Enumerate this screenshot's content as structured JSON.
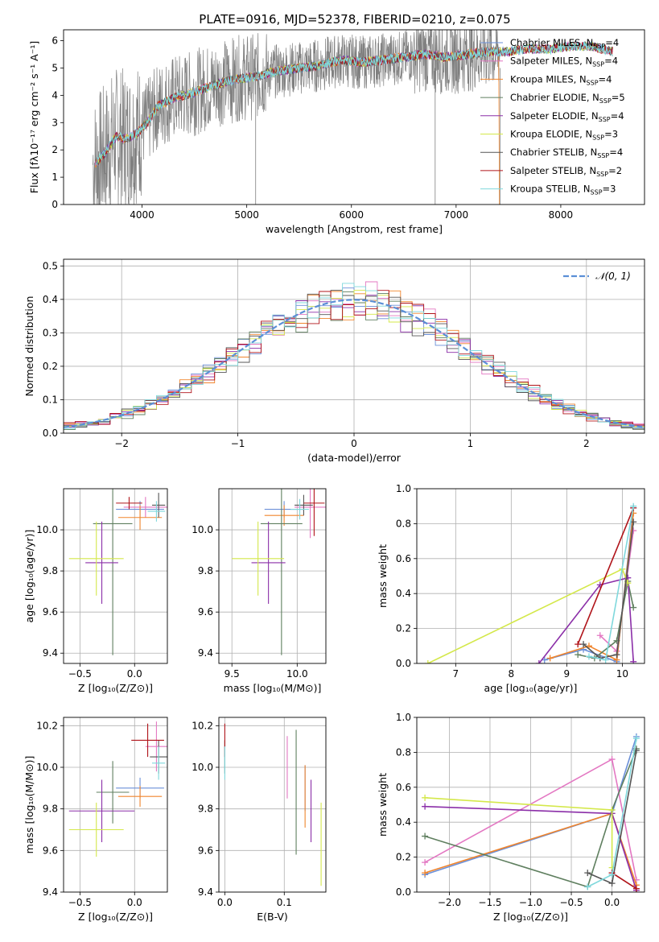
{
  "title": "PLATE=0916, MJD=52378, FIBERID=0210, z=0.075",
  "colors": {
    "Chabrier MILES": "#6a8fd8",
    "Salpeter MILES": "#e377c2",
    "Kroupa MILES": "#f0852d",
    "Chabrier ELODIE": "#5f7f5f",
    "Salpeter ELODIE": "#8b2fa8",
    "Kroupa ELODIE": "#d4e84a",
    "Chabrier STELIB": "#555555",
    "Salpeter STELIB": "#b0141a",
    "Kroupa STELIB": "#7fd8dc",
    "data": "#808080"
  },
  "chart_data": [
    {
      "id": "spectrum",
      "type": "line",
      "xlabel": "wavelength [Angstrom, rest frame]",
      "ylabel": "Flux [fλ10⁻¹⁷ erg cm⁻² s⁻¹ A⁻¹]",
      "xlim": [
        3250,
        8800
      ],
      "ylim": [
        0,
        6.4
      ],
      "xticks": [
        4000,
        5000,
        6000,
        7000,
        8000
      ],
      "yticks": [
        0,
        1,
        2,
        3,
        4,
        5,
        6
      ],
      "grid": false,
      "legend_position": "right",
      "continuum": {
        "x": [
          3550,
          3650,
          3750,
          3850,
          3950,
          4050,
          4150,
          4300,
          4500,
          4700,
          4900,
          5100,
          5300,
          5500,
          5700,
          5900,
          6100,
          6300,
          6500,
          6700,
          6900,
          7100,
          7300,
          7500,
          7700,
          7900,
          8100,
          8300,
          8500
        ],
        "y": [
          1.5,
          1.9,
          2.5,
          2.4,
          2.6,
          3.0,
          3.6,
          3.9,
          4.1,
          4.4,
          4.6,
          4.7,
          4.9,
          5.0,
          5.1,
          5.3,
          5.2,
          5.3,
          5.4,
          5.5,
          5.4,
          5.5,
          5.6,
          5.6,
          5.7,
          5.7,
          5.8,
          5.8,
          5.6
        ]
      },
      "legend": [
        {
          "label": "Chabrier MILES, N",
          "nssp": "4"
        },
        {
          "label": "Salpeter MILES, N",
          "nssp": "4"
        },
        {
          "label": "Kroupa MILES, N",
          "nssp": "4"
        },
        {
          "label": "Chabrier ELODIE, N",
          "nssp": "5"
        },
        {
          "label": "Salpeter ELODIE, N",
          "nssp": "4"
        },
        {
          "label": "Kroupa ELODIE, N",
          "nssp": "3"
        },
        {
          "label": "Chabrier STELIB, N",
          "nssp": "4"
        },
        {
          "label": "Salpeter STELIB, N",
          "nssp": "2"
        },
        {
          "label": "Kroupa STELIB, N",
          "nssp": "3"
        }
      ],
      "legend_sub": "SSP"
    },
    {
      "id": "residuals",
      "type": "line",
      "xlabel": "(data-model)/error",
      "ylabel": "Normed distribution",
      "xlim": [
        -2.5,
        2.5
      ],
      "ylim": [
        0,
        0.52
      ],
      "xticks": [
        -2,
        -1,
        0,
        1,
        2
      ],
      "yticks": [
        0.0,
        0.1,
        0.2,
        0.3,
        0.4,
        0.5
      ],
      "grid": true,
      "legend_position": "top-right",
      "legend_label": "𝒩(0, 1)",
      "gaussian": {
        "mean": 0,
        "sigma": 1
      }
    },
    {
      "id": "age-vs-Z",
      "type": "scatter",
      "xlabel": "Z [log₁₀(Z/Z⊙)]",
      "ylabel": "age  [log₁₀(age/yr)]",
      "xlim": [
        -0.65,
        0.3
      ],
      "ylim": [
        9.35,
        10.2
      ],
      "xticks": [
        -0.5,
        0.0
      ],
      "yticks": [
        9.4,
        9.6,
        9.8,
        10.0
      ],
      "grid": true,
      "points": [
        {
          "series": "Chabrier MILES",
          "x": 0.05,
          "y": 10.1,
          "xerr": 0.22,
          "yerr": 0.04
        },
        {
          "series": "Salpeter MILES",
          "x": 0.1,
          "y": 10.11,
          "xerr": 0.2,
          "yerr": 0.05
        },
        {
          "series": "Kroupa MILES",
          "x": 0.05,
          "y": 10.06,
          "xerr": 0.2,
          "yerr": 0.06
        },
        {
          "series": "Chabrier ELODIE",
          "x": -0.2,
          "y": 10.03,
          "xerr": 0.18,
          "yerr": 0.64
        },
        {
          "series": "Salpeter ELODIE",
          "x": -0.3,
          "y": 9.84,
          "xerr": 0.15,
          "yerr": 0.2
        },
        {
          "series": "Kroupa ELODIE",
          "x": -0.35,
          "y": 9.86,
          "xerr": 0.25,
          "yerr": 0.18
        },
        {
          "series": "Chabrier STELIB",
          "x": 0.22,
          "y": 10.12,
          "xerr": 0.06,
          "yerr": 0.06
        },
        {
          "series": "Salpeter STELIB",
          "x": -0.05,
          "y": 10.13,
          "xerr": 0.12,
          "yerr": 0.03
        },
        {
          "series": "Kroupa STELIB",
          "x": 0.2,
          "y": 10.09,
          "xerr": 0.08,
          "yerr": 0.05
        }
      ]
    },
    {
      "id": "age-vs-mass",
      "type": "scatter",
      "xlabel": "mass [log₁₀(M/M⊙)]",
      "ylabel": "",
      "xlim": [
        9.4,
        10.22
      ],
      "ylim": [
        9.35,
        10.2
      ],
      "xticks": [
        9.5,
        10.0
      ],
      "yticks": [
        9.4,
        9.6,
        9.8,
        10.0
      ],
      "grid": true,
      "points": [
        {
          "series": "Chabrier MILES",
          "x": 9.9,
          "y": 10.1,
          "xerr": 0.15,
          "yerr": 0.04
        },
        {
          "series": "Salpeter MILES",
          "x": 10.1,
          "y": 10.11,
          "xerr": 0.12,
          "yerr": 0.15
        },
        {
          "series": "Kroupa MILES",
          "x": 9.9,
          "y": 10.07,
          "xerr": 0.15,
          "yerr": 0.05
        },
        {
          "series": "Chabrier ELODIE",
          "x": 9.88,
          "y": 10.03,
          "xerr": 0.16,
          "yerr": 0.64
        },
        {
          "series": "Salpeter ELODIE",
          "x": 9.78,
          "y": 9.84,
          "xerr": 0.13,
          "yerr": 0.2
        },
        {
          "series": "Kroupa ELODIE",
          "x": 9.7,
          "y": 9.86,
          "xerr": 0.2,
          "yerr": 0.18
        },
        {
          "series": "Chabrier STELIB",
          "x": 10.05,
          "y": 10.12,
          "xerr": 0.07,
          "yerr": 0.05
        },
        {
          "series": "Salpeter STELIB",
          "x": 10.13,
          "y": 10.13,
          "xerr": 0.08,
          "yerr": 0.16
        },
        {
          "series": "Kroupa STELIB",
          "x": 10.02,
          "y": 10.1,
          "xerr": 0.07,
          "yerr": 0.05
        }
      ]
    },
    {
      "id": "weight-vs-age",
      "type": "line",
      "xlabel": "age  [log₁₀(age/yr)]",
      "ylabel": "mass weight",
      "xlim": [
        6.3,
        10.4
      ],
      "ylim": [
        0,
        1
      ],
      "xticks": [
        7,
        8,
        9,
        10
      ],
      "yticks": [
        0.0,
        0.2,
        0.4,
        0.6,
        0.8,
        1.0
      ],
      "grid": true,
      "series": [
        {
          "name": "Chabrier MILES",
          "x": [
            8.6,
            9.3,
            9.9,
            10.2
          ],
          "y": [
            0.02,
            0.08,
            0.01,
            0.89
          ]
        },
        {
          "name": "Salpeter MILES",
          "x": [
            9.6,
            9.9,
            10.2
          ],
          "y": [
            0.16,
            0.07,
            0.76
          ]
        },
        {
          "name": "Kroupa MILES",
          "x": [
            8.7,
            9.4,
            9.9,
            10.2
          ],
          "y": [
            0.03,
            0.1,
            0.02,
            0.86
          ]
        },
        {
          "name": "Chabrier ELODIE",
          "x": [
            9.2,
            9.5,
            9.9,
            10.1,
            10.2
          ],
          "y": [
            0.05,
            0.03,
            0.13,
            0.47,
            0.32
          ]
        },
        {
          "name": "Salpeter ELODIE",
          "x": [
            8.5,
            9.6,
            10.1,
            10.2
          ],
          "y": [
            0.0,
            0.45,
            0.49,
            0.01
          ]
        },
        {
          "name": "Kroupa ELODIE",
          "x": [
            6.5,
            10.0,
            10.1
          ],
          "y": [
            0.0,
            0.54,
            0.46
          ]
        },
        {
          "name": "Chabrier STELIB",
          "x": [
            9.3,
            9.6,
            9.9,
            10.2
          ],
          "y": [
            0.11,
            0.03,
            0.05,
            0.81
          ]
        },
        {
          "name": "Salpeter STELIB",
          "x": [
            9.2,
            10.2
          ],
          "y": [
            0.11,
            0.89
          ]
        },
        {
          "name": "Kroupa STELIB",
          "x": [
            9.4,
            9.7,
            10.2
          ],
          "y": [
            0.04,
            0.02,
            0.9
          ]
        }
      ]
    },
    {
      "id": "mass-vs-Z",
      "type": "scatter",
      "xlabel": "Z [log₁₀(Z/Z⊙)]",
      "ylabel": "mass [log₁₀(M/M⊙)]",
      "xlim": [
        -0.65,
        0.3
      ],
      "ylim": [
        9.4,
        10.24
      ],
      "xticks": [
        -0.5,
        0.0
      ],
      "yticks": [
        9.4,
        9.6,
        9.8,
        10.0,
        10.2
      ],
      "grid": true,
      "points": [
        {
          "series": "Chabrier MILES",
          "x": 0.05,
          "y": 9.9,
          "xerr": 0.22,
          "yerr": 0.05
        },
        {
          "series": "Salpeter MILES",
          "x": 0.2,
          "y": 10.1,
          "xerr": 0.1,
          "yerr": 0.12
        },
        {
          "series": "Kroupa MILES",
          "x": 0.05,
          "y": 9.86,
          "xerr": 0.2,
          "yerr": 0.05
        },
        {
          "series": "Chabrier ELODIE",
          "x": -0.2,
          "y": 9.88,
          "xerr": 0.15,
          "yerr": 0.15
        },
        {
          "series": "Salpeter ELODIE",
          "x": -0.3,
          "y": 9.79,
          "xerr": 0.3,
          "yerr": 0.15
        },
        {
          "series": "Kroupa ELODIE",
          "x": -0.35,
          "y": 9.7,
          "xerr": 0.25,
          "yerr": 0.13
        },
        {
          "series": "Chabrier STELIB",
          "x": 0.22,
          "y": 10.05,
          "xerr": 0.08,
          "yerr": 0.08
        },
        {
          "series": "Salpeter STELIB",
          "x": 0.12,
          "y": 10.13,
          "xerr": 0.15,
          "yerr": 0.08
        },
        {
          "series": "Kroupa STELIB",
          "x": 0.22,
          "y": 10.02,
          "xerr": 0.06,
          "yerr": 0.08
        }
      ]
    },
    {
      "id": "mass-vs-ebv",
      "type": "scatter",
      "xlabel": "E(B-V)",
      "ylabel": "",
      "xlim": [
        -0.01,
        0.17
      ],
      "ylim": [
        9.4,
        10.24
      ],
      "xticks": [
        0.0,
        0.1
      ],
      "yticks": [
        9.4,
        9.6,
        9.8,
        10.0,
        10.2
      ],
      "grid": true,
      "points": [
        {
          "series": "Chabrier MILES",
          "x": 0.135,
          "y": 9.9,
          "xerr": 0,
          "yerr": 0.11
        },
        {
          "series": "Salpeter MILES",
          "x": 0.105,
          "y": 10.0,
          "xerr": 0,
          "yerr": 0.15
        },
        {
          "series": "Kroupa MILES",
          "x": 0.135,
          "y": 9.86,
          "xerr": 0,
          "yerr": 0.15
        },
        {
          "series": "Chabrier ELODIE",
          "x": 0.12,
          "y": 9.88,
          "xerr": 0,
          "yerr": 0.3
        },
        {
          "series": "Salpeter ELODIE",
          "x": 0.145,
          "y": 9.79,
          "xerr": 0,
          "yerr": 0.15
        },
        {
          "series": "Kroupa ELODIE",
          "x": 0.162,
          "y": 9.63,
          "xerr": 0,
          "yerr": 0.2
        },
        {
          "series": "Chabrier STELIB",
          "x": 0.0,
          "y": 10.05,
          "xerr": 0,
          "yerr": 0.08
        },
        {
          "series": "Salpeter STELIB",
          "x": 0.0,
          "y": 10.13,
          "xerr": 0,
          "yerr": 0.08
        },
        {
          "series": "Kroupa STELIB",
          "x": 0.0,
          "y": 10.02,
          "xerr": 0,
          "yerr": 0.08
        }
      ]
    },
    {
      "id": "weight-vs-Z",
      "type": "line",
      "xlabel": "Z [log₁₀(Z/Z⊙)]",
      "ylabel": "mass weight",
      "xlim": [
        -2.4,
        0.4
      ],
      "ylim": [
        0,
        1
      ],
      "xticks": [
        -2.0,
        -1.5,
        -1.0,
        -0.5,
        0.0
      ],
      "yticks": [
        0.0,
        0.2,
        0.4,
        0.6,
        0.8,
        1.0
      ],
      "grid": true,
      "series": [
        {
          "name": "Chabrier MILES",
          "x": [
            -2.3,
            0.0,
            0.3
          ],
          "y": [
            0.1,
            0.45,
            0.89
          ]
        },
        {
          "name": "Salpeter MILES",
          "x": [
            -2.3,
            0.0,
            0.3
          ],
          "y": [
            0.17,
            0.76,
            0.07
          ]
        },
        {
          "name": "Kroupa MILES",
          "x": [
            -2.3,
            0.0,
            0.3
          ],
          "y": [
            0.11,
            0.45,
            0.04
          ]
        },
        {
          "name": "Chabrier ELODIE",
          "x": [
            -2.3,
            -0.3,
            0.0,
            0.3
          ],
          "y": [
            0.32,
            0.03,
            0.47,
            0.82
          ]
        },
        {
          "name": "Salpeter ELODIE",
          "x": [
            -2.3,
            0.0,
            0.3
          ],
          "y": [
            0.49,
            0.45,
            0.01
          ]
        },
        {
          "name": "Kroupa ELODIE",
          "x": [
            -2.3,
            0.0,
            0.0
          ],
          "y": [
            0.54,
            0.47,
            0.14
          ]
        },
        {
          "name": "Chabrier STELIB",
          "x": [
            -0.3,
            0.0,
            0.3
          ],
          "y": [
            0.11,
            0.05,
            0.81
          ]
        },
        {
          "name": "Salpeter STELIB",
          "x": [
            0.0,
            0.3
          ],
          "y": [
            0.11,
            0.02
          ]
        },
        {
          "name": "Kroupa STELIB",
          "x": [
            -0.3,
            0.0,
            0.3
          ],
          "y": [
            0.03,
            0.1,
            0.88
          ]
        }
      ]
    }
  ]
}
